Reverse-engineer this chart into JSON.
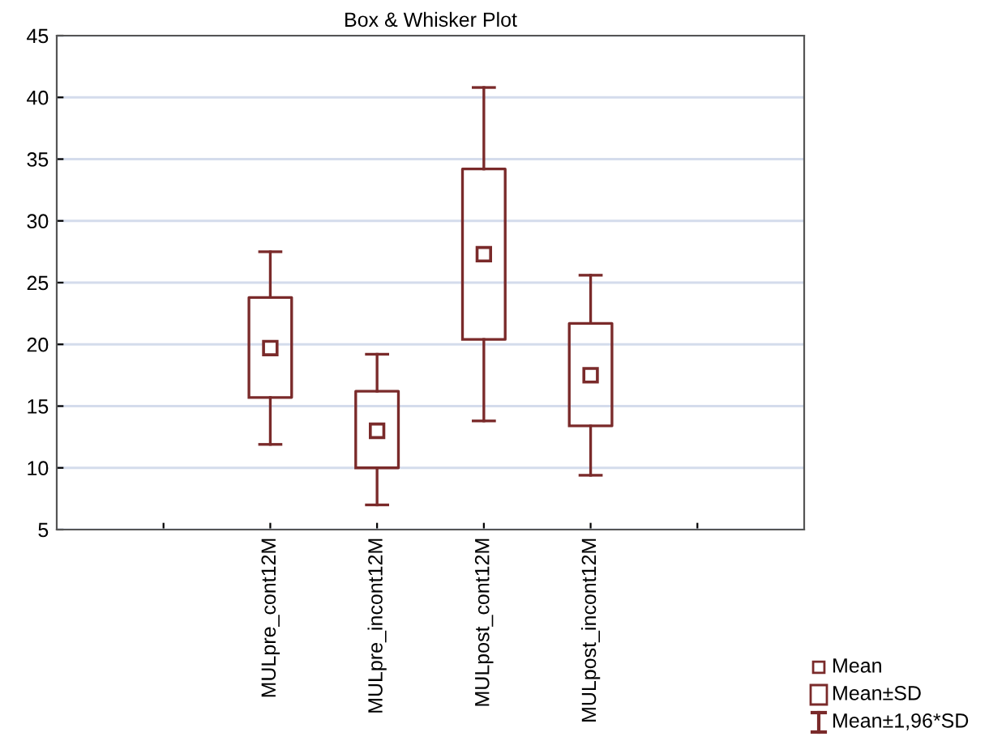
{
  "chart_data": {
    "type": "box",
    "title": "Box & Whisker Plot",
    "categories": [
      null,
      "MULpre_cont12M",
      "MULpre_incont12M",
      "MULpost_cont12M",
      "MULpost_incont12M",
      null
    ],
    "boxes": [
      null,
      {
        "low": 11.9,
        "q1": 15.7,
        "q3": 23.8,
        "high": 27.5,
        "mean": 19.7
      },
      {
        "low": 7.0,
        "q1": 10.0,
        "q3": 16.2,
        "high": 19.2,
        "mean": 13.0
      },
      {
        "low": 13.8,
        "q1": 20.4,
        "q3": 34.2,
        "high": 40.8,
        "mean": 27.3
      },
      {
        "low": 9.4,
        "q1": 13.4,
        "q3": 21.7,
        "high": 25.6,
        "mean": 17.5
      },
      null
    ],
    "color": "#7a2a2a",
    "ylim": [
      5,
      45
    ],
    "yticks": [
      5,
      10,
      15,
      20,
      25,
      30,
      35,
      40,
      45
    ],
    "grid": "y",
    "marker": "square",
    "annotations": [
      "Mean",
      "Mean±SD",
      "Mean±1,96*SD"
    ]
  }
}
